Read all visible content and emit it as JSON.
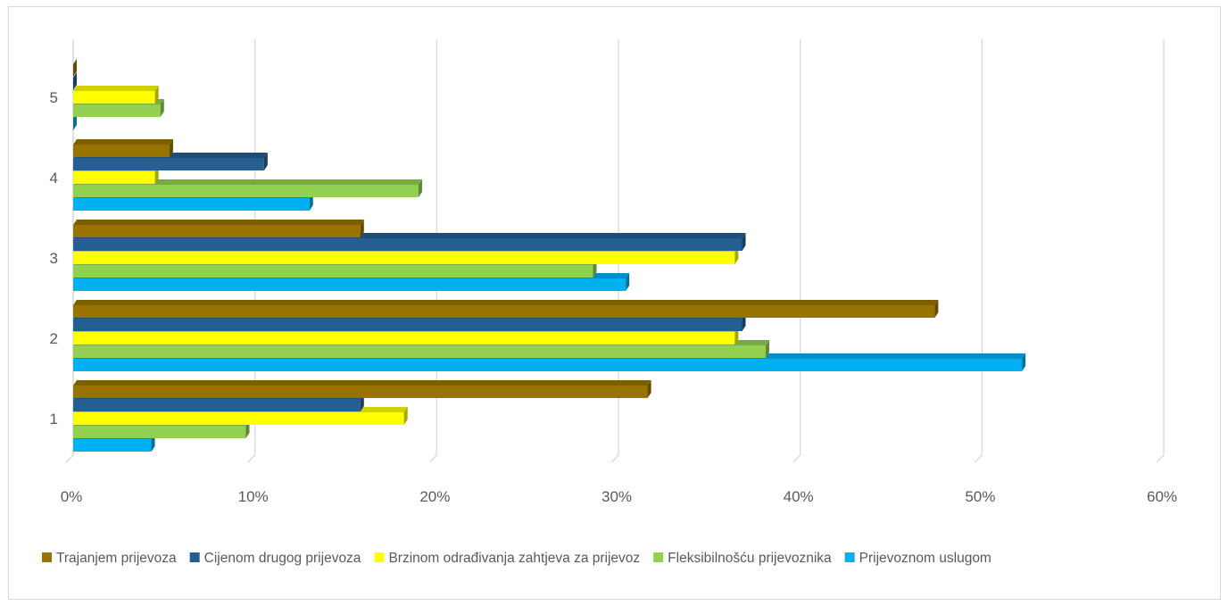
{
  "chart_data": {
    "type": "bar",
    "orientation": "horizontal",
    "style": "3d-clustered",
    "categories": [
      "1",
      "2",
      "3",
      "4",
      "5"
    ],
    "series": [
      {
        "name": "Prijevoznom uslugom",
        "color": "#00b0f0",
        "values": [
          4.3,
          52.2,
          30.4,
          13.0,
          0.0
        ]
      },
      {
        "name": "Fleksibilnošću prijevoznika",
        "color": "#92d050",
        "values": [
          9.5,
          38.1,
          28.6,
          19.0,
          4.8
        ]
      },
      {
        "name": "Brzinom odrađivanja zahtjeva za prijevoz",
        "color": "#ffff00",
        "values": [
          18.2,
          36.4,
          36.4,
          4.5,
          4.5
        ]
      },
      {
        "name": "Cijenom drugog prijevoza",
        "color": "#255e91",
        "values": [
          15.8,
          36.8,
          36.8,
          10.5,
          0.0
        ]
      },
      {
        "name": "Trajanjem prijevoza",
        "color": "#997300",
        "values": [
          31.6,
          47.4,
          15.8,
          5.3,
          0.0
        ]
      }
    ],
    "x_ticks": [
      "0%",
      "10%",
      "20%",
      "30%",
      "40%",
      "50%",
      "60%"
    ],
    "xlim": [
      0,
      60
    ],
    "grid": true,
    "legend_position": "bottom",
    "legend_order": [
      "Trajanjem prijevoza",
      "Cijenom drugog prijevoza",
      "Brzinom odrađivanja zahtjeva za prijevoz",
      "Fleksibilnošću prijevoznika",
      "Prijevoznom uslugom"
    ],
    "title": "",
    "xlabel": "",
    "ylabel": ""
  }
}
